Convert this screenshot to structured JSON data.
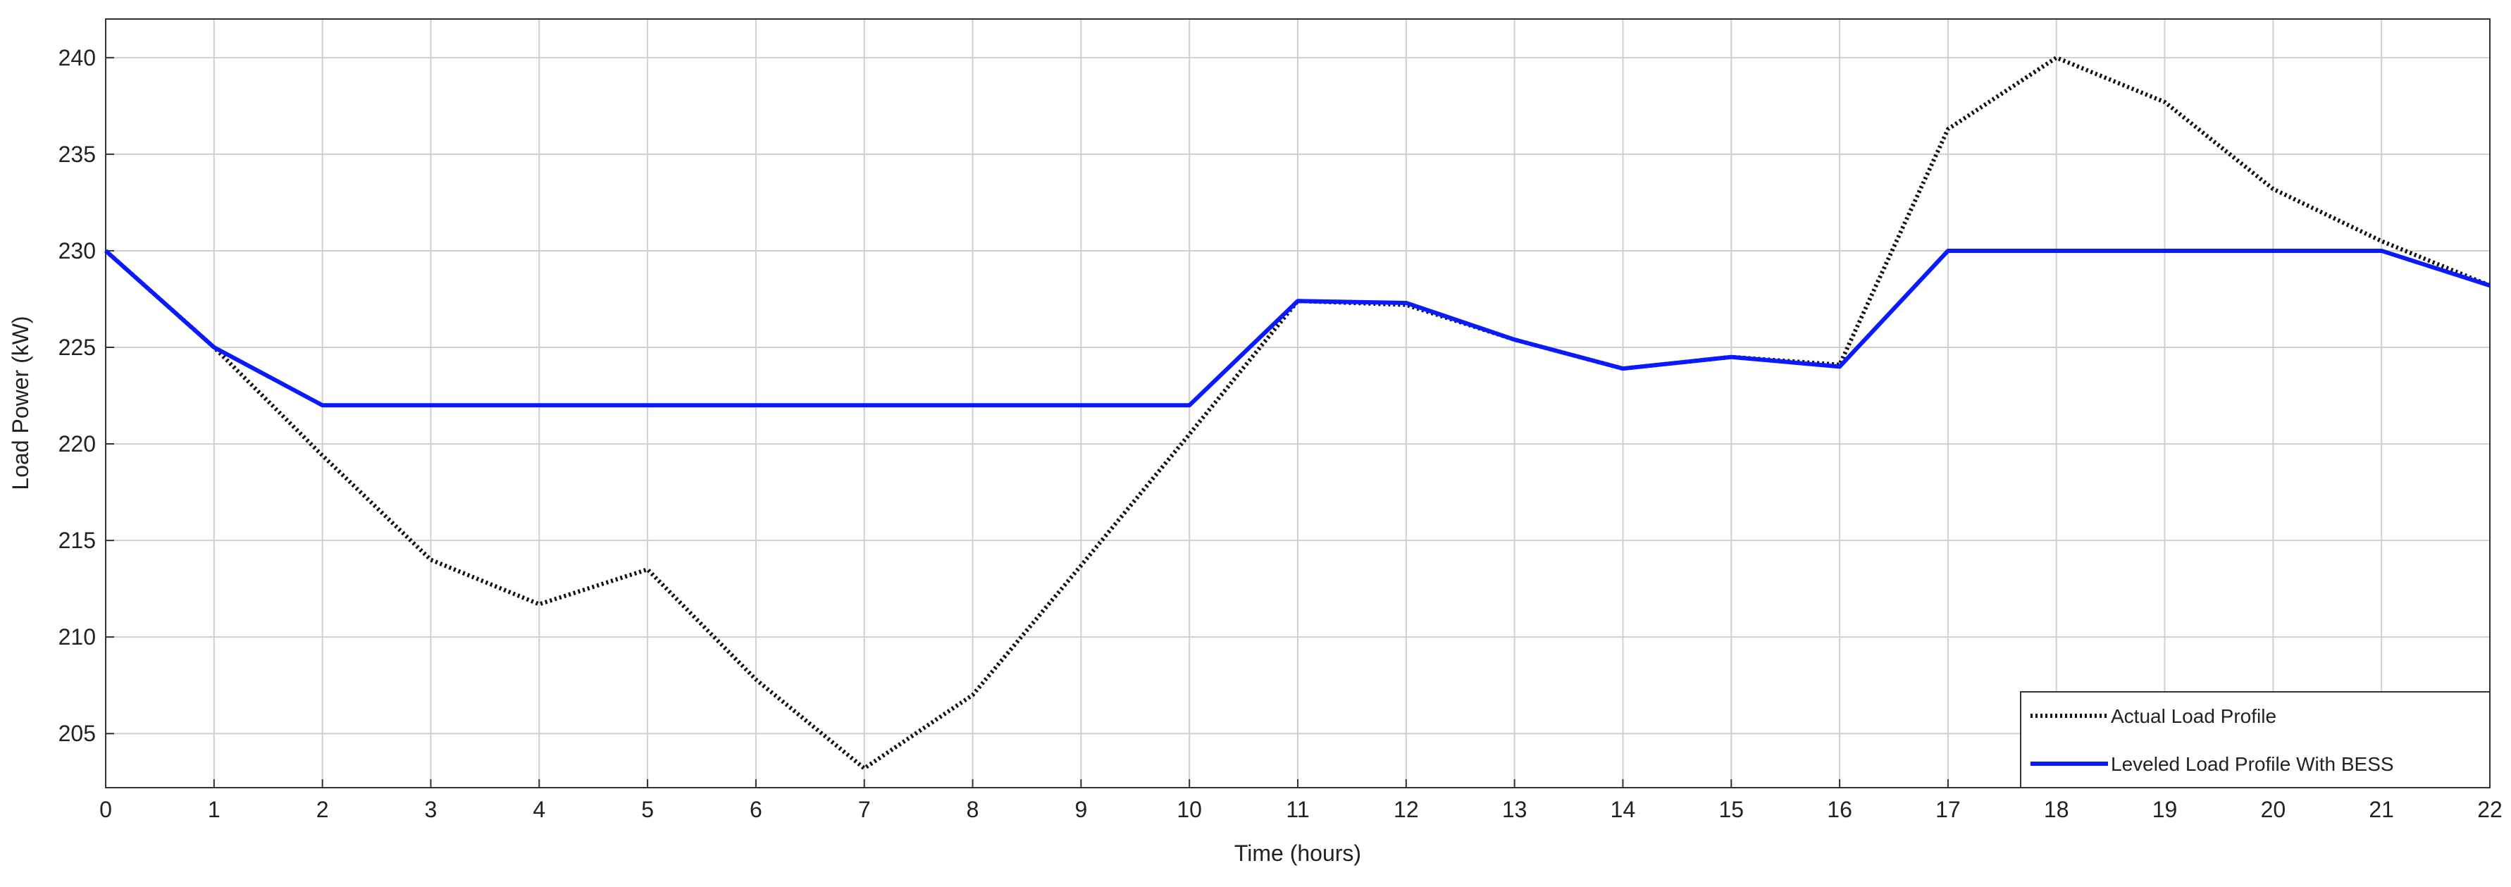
{
  "chart_data": {
    "type": "line",
    "x_label": "Time (hours)",
    "y_label": "Load Power (kW)",
    "x": [
      0,
      1,
      2,
      3,
      4,
      5,
      6,
      7,
      8,
      9,
      10,
      11,
      12,
      13,
      14,
      15,
      16,
      17,
      18,
      19,
      20,
      21,
      22
    ],
    "series": [
      {
        "name": "Actual Load Profile",
        "color": "#111111",
        "linestyle": "dotted",
        "values": [
          230,
          225,
          219.4,
          214,
          211.7,
          213.5,
          207.8,
          203.2,
          207,
          213.7,
          220.5,
          227.4,
          227.2,
          225.4,
          223.9,
          224.5,
          224.1,
          236.3,
          240,
          237.7,
          233.2,
          230.5,
          228.2
        ]
      },
      {
        "name": "Leveled Load Profile With BESS",
        "color": "#0a1aff",
        "linestyle": "solid",
        "values": [
          230,
          225,
          222,
          222,
          222,
          222,
          222,
          222,
          222,
          222,
          222,
          227.4,
          227.3,
          225.4,
          223.9,
          224.5,
          224,
          230,
          230,
          230,
          230,
          230,
          228.2
        ]
      }
    ],
    "xlim": [
      0,
      22
    ],
    "xticks": [
      0,
      1,
      2,
      3,
      4,
      5,
      6,
      7,
      8,
      9,
      10,
      11,
      12,
      13,
      14,
      15,
      16,
      17,
      18,
      19,
      20,
      21,
      22
    ],
    "ylim": [
      202.2,
      242
    ],
    "yticks": [
      205,
      210,
      215,
      220,
      225,
      230,
      235,
      240
    ],
    "grid": true,
    "legend": "lower right"
  }
}
